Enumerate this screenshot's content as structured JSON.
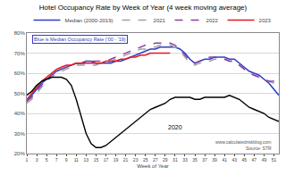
{
  "chart_data": {
    "type": "line",
    "title": "Hotel Occupancy Rate by Week of Year (4 week moving average)",
    "x_label": "Week of Year",
    "x": [
      1,
      2,
      3,
      4,
      5,
      6,
      7,
      8,
      9,
      10,
      11,
      12,
      13,
      14,
      15,
      16,
      17,
      18,
      19,
      20,
      21,
      22,
      23,
      24,
      25,
      26,
      27,
      28,
      29,
      30,
      31,
      32,
      33,
      34,
      35,
      36,
      37,
      38,
      39,
      40,
      41,
      42,
      43,
      44,
      45,
      46,
      47,
      48,
      49,
      50,
      51,
      52
    ],
    "xlim": [
      1,
      52
    ],
    "xticks": [
      1,
      3,
      5,
      7,
      9,
      11,
      13,
      15,
      17,
      19,
      21,
      23,
      25,
      27,
      29,
      31,
      33,
      35,
      37,
      39,
      41,
      43,
      45,
      47,
      49,
      51
    ],
    "ylim": [
      20,
      80
    ],
    "yticks": [
      {
        "value": 20,
        "label": "20%"
      },
      {
        "value": 30,
        "label": "30%"
      },
      {
        "value": 40,
        "label": "40%"
      },
      {
        "value": 50,
        "label": "50%"
      },
      {
        "value": 60,
        "label": "60%"
      },
      {
        "value": 70,
        "label": "70%"
      },
      {
        "value": 80,
        "label": "80%"
      }
    ],
    "grid": true,
    "legend": "top",
    "series": [
      {
        "name": "Median (2000-2019)",
        "color": "#2f3fc4",
        "line_style": "solid",
        "values": [
          46,
          49,
          52,
          55,
          57,
          59,
          61,
          62,
          63,
          64,
          65,
          65,
          66,
          66,
          65,
          65,
          65,
          65,
          66,
          66,
          67,
          68,
          69,
          70,
          71,
          72,
          72,
          73,
          73,
          73,
          73,
          72,
          70,
          67,
          65,
          66,
          67,
          67,
          68,
          68,
          68,
          67,
          67,
          65,
          63,
          61,
          60,
          59,
          57,
          55,
          52,
          49
        ]
      },
      {
        "name": "2021",
        "color": "#a0a0a0",
        "line_style": "dash",
        "values": [
          45,
          47,
          50,
          53,
          56,
          58,
          60,
          61,
          62,
          63,
          64,
          64,
          64,
          64,
          64,
          65,
          65,
          66,
          67,
          68,
          69,
          70,
          71,
          72,
          72,
          73,
          73,
          74,
          74,
          74,
          73,
          71,
          68,
          65,
          64,
          65,
          66,
          66,
          67,
          67,
          67,
          66,
          66,
          64,
          62,
          60,
          59,
          58,
          57,
          56,
          55,
          54
        ]
      },
      {
        "name": "2022",
        "color": "#8a3fa0",
        "line_style": "dash",
        "values": [
          46,
          48,
          51,
          54,
          57,
          59,
          61,
          62,
          63,
          64,
          65,
          65,
          65,
          66,
          66,
          66,
          66,
          67,
          68,
          69,
          70,
          71,
          72,
          73,
          74,
          74,
          75,
          75,
          75,
          75,
          74,
          72,
          69,
          66,
          65,
          66,
          67,
          68,
          68,
          68,
          67,
          66,
          66,
          64,
          62,
          60,
          59,
          58,
          57,
          56,
          56,
          55
        ]
      },
      {
        "name": "2023",
        "color": "#e8141c",
        "line_style": "solid",
        "values": [
          47,
          50,
          53,
          56,
          58,
          60,
          62,
          63,
          64,
          64,
          65,
          65,
          65,
          65,
          65,
          65,
          66,
          66,
          66,
          67,
          67,
          68,
          68,
          69,
          69,
          70,
          70,
          70,
          70,
          70,
          null,
          null,
          null,
          null,
          null,
          null,
          null,
          null,
          null,
          null,
          null,
          null,
          null,
          null,
          null,
          null,
          null,
          null,
          null,
          null,
          null,
          null
        ]
      },
      {
        "name": "2020",
        "color": "#000000",
        "line_style": "solid",
        "values": [
          49,
          51,
          54,
          56,
          57,
          58,
          58,
          58,
          57,
          54,
          47,
          38,
          30,
          25,
          23,
          23,
          24,
          26,
          28,
          30,
          32,
          34,
          36,
          38,
          40,
          42,
          43,
          44,
          45,
          47,
          48,
          48,
          48,
          48,
          47,
          47,
          48,
          48,
          48,
          48,
          48,
          49,
          48,
          47,
          45,
          43,
          42,
          41,
          40,
          38,
          37,
          36
        ]
      }
    ],
    "annotations": [
      "Blue is Median Occupancy Rate ('00 - '19)",
      "2020",
      "www.calculatedriskblog.com",
      "Source: STR"
    ]
  }
}
